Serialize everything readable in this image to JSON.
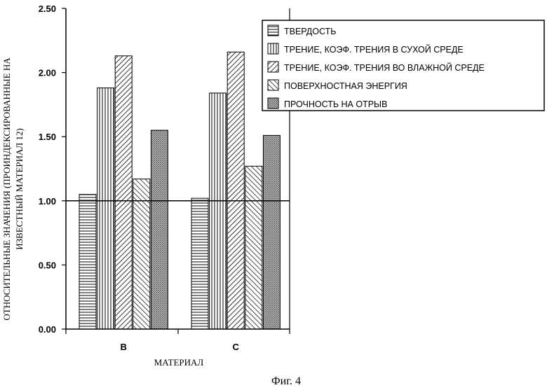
{
  "figure_caption": "Фиг. 4",
  "chart_data": {
    "type": "bar",
    "categories": [
      "B",
      "C"
    ],
    "series": [
      {
        "name": "ТВЕРДОСТЬ",
        "values": [
          1.05,
          1.02
        ],
        "pattern": "horizontal"
      },
      {
        "name": "ТРЕНИЕ, КОЭФ. ТРЕНИЯ В СУХОЙ СРЕДЕ",
        "values": [
          1.88,
          1.84
        ],
        "pattern": "vertical"
      },
      {
        "name": "ТРЕНИЕ, КОЭФ. ТРЕНИЯ ВО ВЛАЖНОЙ СРЕДЕ",
        "values": [
          2.13,
          2.16
        ],
        "pattern": "diag-up"
      },
      {
        "name": "ПОВЕРХНОСТНАЯ ЭНЕРГИЯ",
        "values": [
          1.17,
          1.27
        ],
        "pattern": "diag-down"
      },
      {
        "name": "ПРОЧНОСТЬ НА ОТРЫВ",
        "values": [
          1.55,
          1.51
        ],
        "pattern": "dots"
      }
    ],
    "xlabel": "МАТЕРИАЛ",
    "ylabel_lines": [
      "ОТНОСИТЕЛЬНЫЕ ЗНАЧЕНИЯ (ПРОИНДЕКСИРОВАННЫЕ НА",
      "ИЗВЕСТНЫЙ МАТЕРИАЛ 12)"
    ],
    "ylim": [
      0,
      2.5
    ],
    "yticks": [
      "0.00",
      "0.50",
      "1.00",
      "1.50",
      "2.00",
      "2.50"
    ],
    "reference_line": 1.0,
    "legend_position": "top-right",
    "grid": false
  }
}
